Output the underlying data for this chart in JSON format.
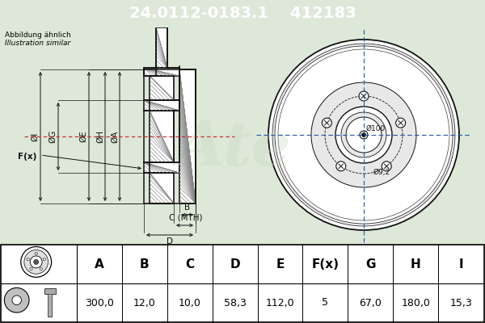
{
  "part_number": "24.0112-0183.1",
  "ref_number": "412183",
  "subtitle1": "Abbildung ähnlich",
  "subtitle2": "Illustration similar",
  "header_bg": "#2255aa",
  "header_text": "#ffffff",
  "body_bg": "#dde8d8",
  "table_bg": "#ffffff",
  "lc": "#111111",
  "labels": [
    "A",
    "B",
    "C",
    "D",
    "E",
    "F(x)",
    "G",
    "H",
    "I"
  ],
  "values": [
    "300,0",
    "12,0",
    "10,0",
    "58,3",
    "112,0",
    "5",
    "67,0",
    "180,0",
    "15,3"
  ],
  "dim_A": "ØA",
  "dim_H": "ØH",
  "dim_E": "ØE",
  "dim_G": "ØG",
  "dim_I": "ØI",
  "diameter_100": "Ø100",
  "diameter_92": "Ø9,2",
  "label_B": "B",
  "label_C": "C (MTH)",
  "label_D": "D",
  "label_F": "F(x)"
}
